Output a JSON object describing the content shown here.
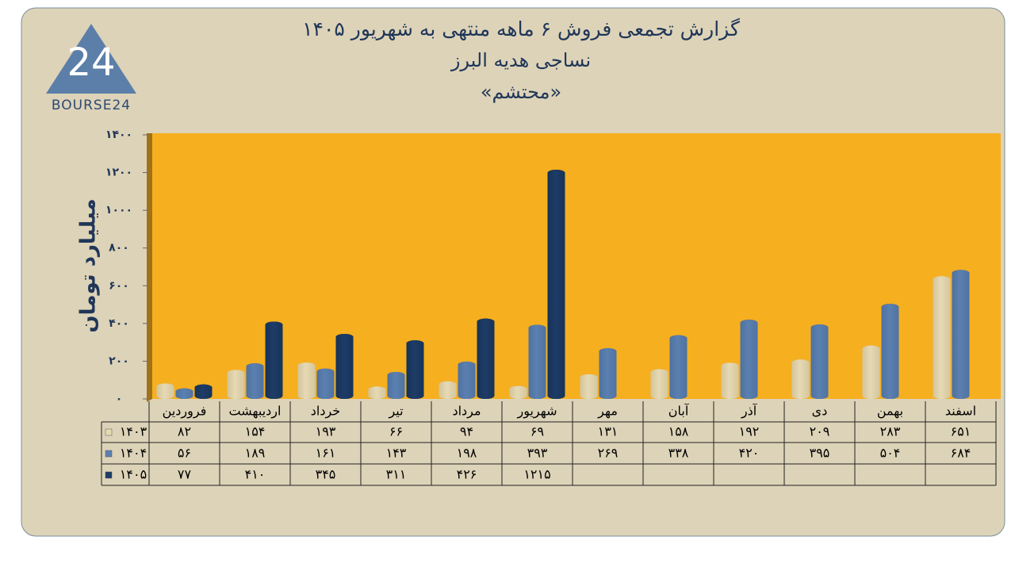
{
  "logo": {
    "mark": "24",
    "name": "BOURSE24"
  },
  "chart_data": {
    "type": "bar",
    "title": "گزارش تجمعی فروش ۶ ماهه منتهی به شهریور ۱۴۰۵",
    "subtitle": "نساجی هدیه البرز",
    "subtitle2": "«محتشم»",
    "y_label": "میلیارد تومان",
    "categories": [
      "فروردین",
      "اردیبهشت",
      "خرداد",
      "تیر",
      "مرداد",
      "شهریور",
      "مهر",
      "آبان",
      "آذر",
      "دی",
      "بهمن",
      "اسفند"
    ],
    "series": [
      {
        "name": "۱۴۰۳",
        "color": "#e6d9b3",
        "values": [
          82,
          154,
          193,
          66,
          94,
          69,
          131,
          158,
          192,
          209,
          283,
          651
        ],
        "value_labels": [
          "۸۲",
          "۱۵۴",
          "۱۹۳",
          "۶۶",
          "۹۴",
          "۶۹",
          "۱۳۱",
          "۱۵۸",
          "۱۹۲",
          "۲۰۹",
          "۲۸۳",
          "۶۵۱"
        ]
      },
      {
        "name": "۱۴۰۴",
        "color": "#5b80b0",
        "values": [
          56,
          189,
          161,
          143,
          198,
          393,
          269,
          338,
          420,
          395,
          504,
          684
        ],
        "value_labels": [
          "۵۶",
          "۱۸۹",
          "۱۶۱",
          "۱۴۳",
          "۱۹۸",
          "۳۹۳",
          "۲۶۹",
          "۳۳۸",
          "۴۲۰",
          "۳۹۵",
          "۵۰۴",
          "۶۸۴"
        ]
      },
      {
        "name": "۱۴۰۵",
        "color": "#1d3c66",
        "values": [
          77,
          410,
          345,
          311,
          426,
          1215,
          null,
          null,
          null,
          null,
          null,
          null
        ],
        "value_labels": [
          "۷۷",
          "۴۱۰",
          "۳۴۵",
          "۳۱۱",
          "۴۲۶",
          "۱۲۱۵",
          null,
          null,
          null,
          null,
          null,
          null
        ]
      }
    ],
    "ylim": [
      0,
      1400
    ],
    "yticks": [
      {
        "value": 0,
        "label": "۰"
      },
      {
        "value": 200,
        "label": "۲۰۰"
      },
      {
        "value": 400,
        "label": "۴۰۰"
      },
      {
        "value": 600,
        "label": "۶۰۰"
      },
      {
        "value": 800,
        "label": "۸۰۰"
      },
      {
        "value": 1000,
        "label": "۱۰۰۰"
      },
      {
        "value": 1200,
        "label": "۱۲۰۰"
      },
      {
        "value": 1400,
        "label": "۱۴۰۰"
      }
    ],
    "grid": false,
    "plot_color": "#f6af1f"
  }
}
